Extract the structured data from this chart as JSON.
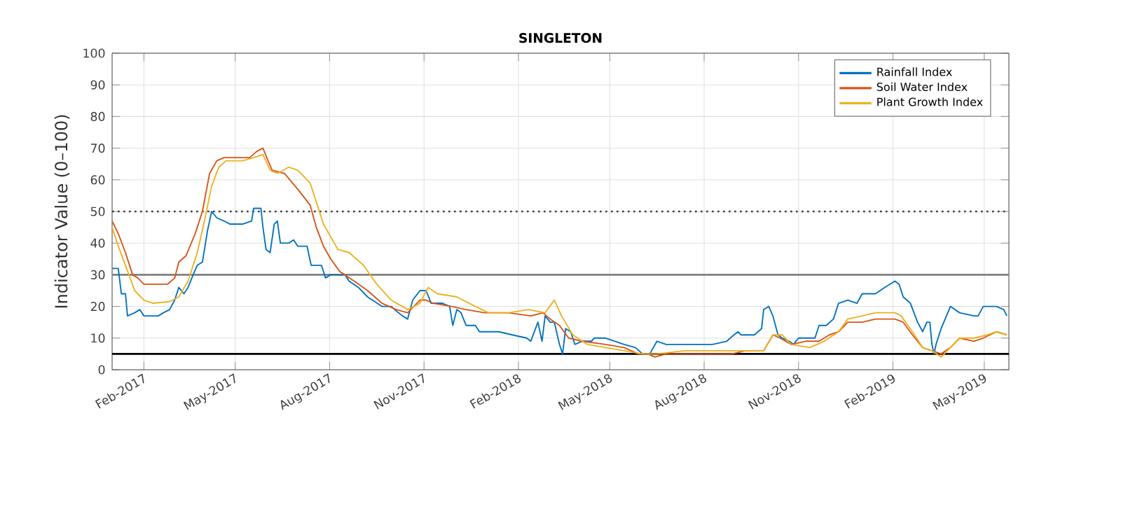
{
  "chart_data": {
    "type": "line",
    "title": "SINGLETON",
    "ylabel": "Indicator Value (0–100)",
    "xlim": [
      "2017-01-01",
      "2019-05-25"
    ],
    "xticks": [
      {
        "value": "2017-02-01",
        "label": "Feb-2017"
      },
      {
        "value": "2017-05-01",
        "label": "May-2017"
      },
      {
        "value": "2017-08-01",
        "label": "Aug-2017"
      },
      {
        "value": "2017-11-01",
        "label": "Nov-2017"
      },
      {
        "value": "2018-02-01",
        "label": "Feb-2018"
      },
      {
        "value": "2018-05-01",
        "label": "May-2018"
      },
      {
        "value": "2018-08-01",
        "label": "Aug-2018"
      },
      {
        "value": "2018-11-01",
        "label": "Nov-2018"
      },
      {
        "value": "2019-02-01",
        "label": "Feb-2019"
      },
      {
        "value": "2019-05-01",
        "label": "May-2019"
      }
    ],
    "ylim": [
      0,
      100
    ],
    "yticks": [
      0,
      10,
      20,
      30,
      40,
      50,
      60,
      70,
      80,
      90,
      100
    ],
    "grid": true,
    "legend": "top right",
    "line_style": "solid",
    "ref_lines": [
      {
        "axis": "y",
        "value": 50,
        "color": "#404040",
        "line_style": "dotted"
      },
      {
        "axis": "y",
        "value": 30,
        "color": "#808080",
        "line_style": "solid"
      },
      {
        "axis": "y",
        "value": 5,
        "color": "#000000",
        "line_style": "solid"
      }
    ],
    "series": [
      {
        "name": "Rainfall Index",
        "color": "#0072bd",
        "x": [
          "2017-01-01",
          "2017-01-07",
          "2017-01-10",
          "2017-01-14",
          "2017-01-16",
          "2017-01-23",
          "2017-01-28",
          "2017-02-01",
          "2017-02-15",
          "2017-02-20",
          "2017-02-26",
          "2017-03-03",
          "2017-03-07",
          "2017-03-12",
          "2017-03-16",
          "2017-03-21",
          "2017-03-25",
          "2017-03-30",
          "2017-04-04",
          "2017-04-08",
          "2017-04-13",
          "2017-04-20",
          "2017-04-26",
          "2017-05-08",
          "2017-05-17",
          "2017-05-19",
          "2017-05-26",
          "2017-05-28",
          "2017-05-31",
          "2017-06-04",
          "2017-06-08",
          "2017-06-11",
          "2017-06-14",
          "2017-06-22",
          "2017-06-27",
          "2017-07-01",
          "2017-07-10",
          "2017-07-14",
          "2017-07-24",
          "2017-07-28",
          "2017-08-02",
          "2017-08-16",
          "2017-08-20",
          "2017-08-29",
          "2017-09-07",
          "2017-09-21",
          "2017-09-30",
          "2017-10-07",
          "2017-10-11",
          "2017-10-16",
          "2017-10-21",
          "2017-10-28",
          "2017-11-03",
          "2017-11-08",
          "2017-11-19",
          "2017-11-26",
          "2017-11-29",
          "2017-12-03",
          "2017-12-07",
          "2017-12-12",
          "2017-12-21",
          "2017-12-25",
          "2018-01-13",
          "2018-01-26",
          "2018-02-09",
          "2018-02-13",
          "2018-02-20",
          "2018-02-24",
          "2018-02-27",
          "2018-03-04",
          "2018-03-08",
          "2018-03-13",
          "2018-03-16",
          "2018-03-19",
          "2018-03-24",
          "2018-03-28",
          "2018-04-04",
          "2018-04-13",
          "2018-04-16",
          "2018-04-27",
          "2018-05-15",
          "2018-05-26",
          "2018-06-02",
          "2018-06-09",
          "2018-06-16",
          "2018-06-25",
          "2018-07-22",
          "2018-08-09",
          "2018-08-23",
          "2018-08-30",
          "2018-09-03",
          "2018-09-06",
          "2018-09-19",
          "2018-09-26",
          "2018-09-28",
          "2018-10-03",
          "2018-10-07",
          "2018-10-12",
          "2018-10-16",
          "2018-10-23",
          "2018-10-27",
          "2018-11-01",
          "2018-11-17",
          "2018-11-21",
          "2018-11-28",
          "2018-12-05",
          "2018-12-10",
          "2018-12-19",
          "2018-12-28",
          "2019-01-02",
          "2019-01-15",
          "2019-01-24",
          "2019-02-03",
          "2019-02-07",
          "2019-02-11",
          "2019-02-18",
          "2019-02-25",
          "2019-03-02",
          "2019-03-06",
          "2019-03-09",
          "2019-03-11",
          "2019-03-13",
          "2019-03-15",
          "2019-03-20",
          "2019-03-29",
          "2019-04-07",
          "2019-04-21",
          "2019-04-25",
          "2019-04-30",
          "2019-05-13",
          "2019-05-20",
          "2019-05-23"
        ],
        "values": [
          32,
          32,
          24,
          24,
          17,
          18,
          19,
          17,
          17,
          18,
          19,
          22,
          26,
          24,
          26,
          30,
          33,
          34,
          44,
          50,
          48,
          47,
          46,
          46,
          47,
          51,
          51,
          45,
          38,
          37,
          46,
          47,
          40,
          40,
          41,
          39,
          39,
          33,
          33,
          29,
          30,
          30,
          28,
          26,
          23,
          20,
          20,
          18,
          17,
          16,
          22,
          25,
          25,
          21,
          21,
          20,
          14,
          19,
          18,
          14,
          14,
          12,
          12,
          11,
          10,
          9,
          15,
          9,
          17,
          15,
          15,
          8,
          5,
          13,
          12,
          8,
          9,
          9,
          10,
          10,
          8,
          7,
          5,
          5,
          9,
          8,
          8,
          8,
          9,
          11,
          12,
          11,
          11,
          13,
          19,
          20,
          17,
          11,
          10,
          9,
          8,
          10,
          10,
          14,
          14,
          16,
          21,
          22,
          21,
          24,
          24,
          26,
          28,
          27,
          23,
          21,
          15,
          12,
          15,
          15,
          8,
          5,
          8,
          13,
          20,
          18,
          17,
          17,
          20,
          20,
          19,
          17
        ]
      },
      {
        "name": "Soil Water Index",
        "color": "#d95319",
        "x": [
          "2017-01-01",
          "2017-01-07",
          "2017-01-14",
          "2017-01-21",
          "2017-01-26",
          "2017-02-01",
          "2017-02-15",
          "2017-02-24",
          "2017-03-03",
          "2017-03-07",
          "2017-03-14",
          "2017-03-23",
          "2017-03-30",
          "2017-04-06",
          "2017-04-13",
          "2017-04-20",
          "2017-04-29",
          "2017-05-15",
          "2017-05-22",
          "2017-05-28",
          "2017-06-02",
          "2017-06-06",
          "2017-06-18",
          "2017-07-01",
          "2017-07-13",
          "2017-07-19",
          "2017-07-26",
          "2017-08-02",
          "2017-08-11",
          "2017-08-25",
          "2017-09-07",
          "2017-09-21",
          "2017-10-05",
          "2017-10-16",
          "2017-10-28",
          "2017-11-03",
          "2017-11-10",
          "2017-11-28",
          "2017-12-12",
          "2017-12-30",
          "2018-01-22",
          "2018-02-13",
          "2018-02-25",
          "2018-03-04",
          "2018-03-13",
          "2018-03-22",
          "2018-04-04",
          "2018-04-27",
          "2018-05-15",
          "2018-05-29",
          "2018-06-07",
          "2018-06-14",
          "2018-06-25",
          "2018-07-22",
          "2018-08-09",
          "2018-08-28",
          "2018-09-10",
          "2018-09-28",
          "2018-10-07",
          "2018-10-14",
          "2018-10-25",
          "2018-11-08",
          "2018-11-21",
          "2018-12-01",
          "2018-12-10",
          "2018-12-19",
          "2019-01-02",
          "2019-01-15",
          "2019-02-03",
          "2019-02-11",
          "2019-02-20",
          "2019-03-02",
          "2019-03-11",
          "2019-03-20",
          "2019-03-29",
          "2019-04-07",
          "2019-04-21",
          "2019-04-30",
          "2019-05-13",
          "2019-05-23"
        ],
        "values": [
          47,
          43,
          37,
          30,
          29,
          27,
          27,
          27,
          29,
          34,
          36,
          43,
          50,
          62,
          66,
          67,
          67,
          67,
          69,
          70,
          66,
          63,
          62,
          57,
          52,
          45,
          39,
          35,
          31,
          28,
          25,
          21,
          19,
          18,
          22,
          22,
          21,
          20,
          19,
          18,
          18,
          17,
          18,
          16,
          14,
          10,
          9,
          8,
          7,
          5,
          5,
          4,
          5,
          5,
          5,
          5,
          6,
          6,
          11,
          10,
          8,
          9,
          9,
          11,
          12,
          15,
          15,
          16,
          16,
          15,
          11,
          7,
          6,
          5,
          7,
          10,
          9,
          10,
          12,
          11
        ]
      },
      {
        "name": "Plant Growth Index",
        "color": "#edb120",
        "x": [
          "2017-01-01",
          "2017-01-07",
          "2017-01-14",
          "2017-01-23",
          "2017-02-01",
          "2017-02-10",
          "2017-02-26",
          "2017-03-07",
          "2017-03-16",
          "2017-03-25",
          "2017-04-01",
          "2017-04-08",
          "2017-04-15",
          "2017-04-22",
          "2017-05-08",
          "2017-05-19",
          "2017-05-28",
          "2017-06-04",
          "2017-06-11",
          "2017-06-22",
          "2017-07-01",
          "2017-07-13",
          "2017-07-19",
          "2017-07-26",
          "2017-08-02",
          "2017-08-09",
          "2017-08-20",
          "2017-09-03",
          "2017-09-16",
          "2017-09-30",
          "2017-10-16",
          "2017-10-28",
          "2017-11-05",
          "2017-11-14",
          "2017-12-03",
          "2017-12-21",
          "2018-01-03",
          "2018-01-22",
          "2018-02-11",
          "2018-02-27",
          "2018-03-08",
          "2018-03-15",
          "2018-03-26",
          "2018-04-09",
          "2018-04-27",
          "2018-05-15",
          "2018-06-02",
          "2018-06-16",
          "2018-07-13",
          "2018-08-09",
          "2018-09-10",
          "2018-09-28",
          "2018-10-07",
          "2018-10-16",
          "2018-10-25",
          "2018-11-12",
          "2018-11-26",
          "2018-12-10",
          "2018-12-19",
          "2019-01-02",
          "2019-01-15",
          "2019-02-03",
          "2019-02-09",
          "2019-02-20",
          "2019-03-02",
          "2019-03-11",
          "2019-03-20",
          "2019-03-29",
          "2019-04-07",
          "2019-04-21",
          "2019-05-04",
          "2019-05-13",
          "2019-05-23"
        ],
        "values": [
          45,
          39,
          33,
          25,
          22,
          21,
          21.5,
          23,
          28,
          37,
          47,
          58,
          64,
          66,
          66,
          67,
          68,
          63,
          62,
          64,
          63,
          59,
          53,
          46,
          42,
          38,
          37,
          33,
          27,
          22,
          19,
          21,
          26,
          24,
          23,
          20,
          18,
          18,
          19,
          18,
          22,
          17,
          11,
          8,
          7,
          6,
          5,
          5,
          6,
          6,
          6,
          6,
          11,
          11,
          8,
          7,
          9,
          12,
          16,
          17,
          18,
          18,
          17,
          12,
          7,
          6,
          4,
          7,
          10,
          10,
          11,
          12,
          11
        ]
      }
    ]
  }
}
